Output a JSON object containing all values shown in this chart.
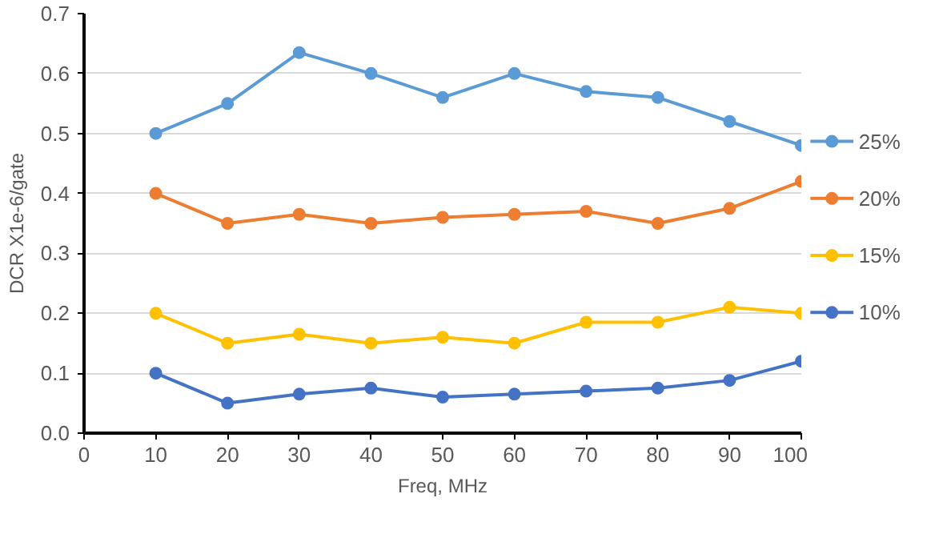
{
  "chart_data": {
    "type": "line",
    "xlabel": "Freq, MHz",
    "ylabel": "DCR X1e-6/gate",
    "x": [
      10,
      20,
      30,
      40,
      50,
      60,
      70,
      80,
      90,
      100
    ],
    "series": [
      {
        "name": "25%",
        "color": "#5b9bd5",
        "values": [
          0.5,
          0.55,
          0.635,
          0.6,
          0.56,
          0.6,
          0.57,
          0.56,
          0.52,
          0.48
        ]
      },
      {
        "name": "20%",
        "color": "#ed7d31",
        "values": [
          0.4,
          0.35,
          0.365,
          0.35,
          0.36,
          0.365,
          0.37,
          0.35,
          0.375,
          0.42
        ]
      },
      {
        "name": "15%",
        "color": "#ffc000",
        "values": [
          0.2,
          0.15,
          0.165,
          0.15,
          0.16,
          0.15,
          0.185,
          0.185,
          0.21,
          0.2
        ]
      },
      {
        "name": "10%",
        "color": "#4472c4",
        "values": [
          0.1,
          0.05,
          0.065,
          0.075,
          0.06,
          0.065,
          0.07,
          0.075,
          0.088,
          0.12
        ]
      }
    ],
    "xlim": [
      0,
      100
    ],
    "xticks": [
      0,
      10,
      20,
      30,
      40,
      50,
      60,
      70,
      80,
      90,
      100
    ],
    "ylim": [
      0,
      0.7
    ],
    "yticks": [
      {
        "value": 0,
        "label": "0.0"
      },
      {
        "value": 0.1,
        "label": "0.1"
      },
      {
        "value": 0.2,
        "label": "0.2"
      },
      {
        "value": 0.3,
        "label": "0.3"
      },
      {
        "value": 0.4,
        "label": "0.4"
      },
      {
        "value": 0.5,
        "label": "0.5"
      },
      {
        "value": 0.6,
        "label": "0.6"
      },
      {
        "value": 0.7,
        "label": "0.7"
      }
    ],
    "grid": "y",
    "legend": "right",
    "marker": "circle",
    "line_style": "solid"
  }
}
